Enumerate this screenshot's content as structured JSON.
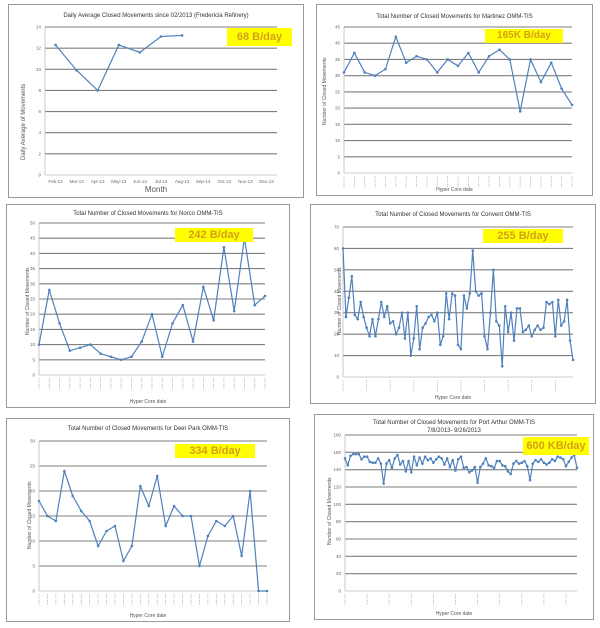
{
  "colors": {
    "line": "#4f81bd",
    "grid": "#7f7f7f",
    "badge_bg": "#ffff00",
    "badge_text": "#d4a017",
    "border": "#9a9a9a"
  },
  "chart_data": [
    {
      "id": "fredericia",
      "type": "line",
      "title": "Daily Average Closed Movements since 02/2013 (Fredericia Refinery)",
      "badge": "68 B/day",
      "xlabel": "Month",
      "ylabel": "Daily Average of Movements",
      "categories": [
        "Feb-13",
        "Mar-13",
        "Apr-13",
        "May-13",
        "Jun-13",
        "Jul-13",
        "Aug-13",
        "Sep-13",
        "Oct-13",
        "Nov-13",
        "Dec-13"
      ],
      "values": [
        12.3,
        9.9,
        8.0,
        12.3,
        11.6,
        13.1,
        13.2,
        null,
        null,
        null,
        null
      ],
      "ylim": [
        0,
        14
      ],
      "yticks": [
        0,
        2,
        4,
        6,
        8,
        10,
        12,
        14
      ],
      "grid": true
    },
    {
      "id": "martinez",
      "type": "line",
      "title": "Total Number of Closed Movements for Martinez OMM-TIS",
      "badge": "165K B/day",
      "xlabel": "Hyper Core date",
      "ylabel": "Number of Closed Movements",
      "values": [
        31,
        37,
        31,
        30,
        32,
        42,
        34,
        36,
        35,
        31,
        35,
        33,
        37,
        31,
        36,
        38,
        35,
        19,
        35,
        28,
        34,
        26,
        21
      ],
      "ylim": [
        0,
        45
      ],
      "yticks": [
        0,
        5,
        10,
        15,
        20,
        25,
        30,
        35,
        40,
        45
      ],
      "grid": true
    },
    {
      "id": "norco",
      "type": "line",
      "title": "Total Number of Closed Movements for Norco OMM-TIS",
      "badge": "242 B/day",
      "xlabel": "Hyper Core date",
      "ylabel": "Number of Closed Movements",
      "values": [
        10,
        28,
        17,
        8,
        9,
        10,
        7,
        6,
        5,
        6,
        11,
        20,
        6,
        17,
        23,
        11,
        29,
        18,
        42,
        21,
        45,
        23,
        26
      ],
      "ylim": [
        0,
        50
      ],
      "yticks": [
        0,
        5,
        10,
        15,
        20,
        25,
        30,
        35,
        40,
        45,
        50
      ],
      "grid": true
    },
    {
      "id": "convent",
      "type": "line",
      "title": "Total Number of Closed Movements for Convent OMM-TIS",
      "badge": "255 B/day",
      "xlabel": "Hyper Core date",
      "ylabel": "Number of Closed Movements",
      "values": [
        60,
        28,
        37,
        47,
        29,
        27,
        35,
        28,
        23,
        19,
        27,
        19,
        27,
        35,
        28,
        33,
        25,
        26,
        20,
        23,
        30,
        18,
        30,
        10,
        18,
        33,
        13,
        23,
        25,
        28,
        29,
        26,
        30,
        15,
        19,
        39,
        27,
        39,
        38,
        15,
        13,
        38,
        32,
        39,
        59,
        40,
        38,
        39,
        19,
        13,
        30,
        50,
        26,
        24,
        5,
        33,
        21,
        30,
        17,
        32,
        32,
        21,
        22,
        24,
        19,
        22,
        24,
        22,
        23,
        35,
        34,
        35,
        19,
        36,
        24,
        26,
        36,
        17,
        8
      ],
      "ylim": [
        0,
        70
      ],
      "yticks": [
        0,
        10,
        20,
        30,
        40,
        50,
        60,
        70
      ],
      "grid": true
    },
    {
      "id": "deer_park",
      "type": "line",
      "title": "Total Number of Closed Movements for Deer Park OMM-TIS",
      "badge": "334 B/day",
      "xlabel": "Hyper Core date",
      "ylabel": "Number of Closed Movements",
      "values": [
        18,
        15,
        14,
        24,
        19,
        16,
        14,
        9,
        12,
        13,
        6,
        9,
        21,
        17,
        23,
        13,
        17,
        15,
        15,
        5,
        11,
        14,
        13,
        15,
        7,
        20,
        0,
        0
      ],
      "ylim": [
        0,
        30
      ],
      "yticks": [
        0,
        5,
        10,
        15,
        20,
        25,
        30
      ],
      "grid": true
    },
    {
      "id": "port_arthur",
      "type": "line",
      "title": "Total Number of Closed Movements for Port Arthur OMM-TIS",
      "subtitle": "7/8/2013- 9/26/2013",
      "badge": "600 KB/day",
      "xlabel": "Hyper Core date",
      "ylabel": "Number of Closed Movements",
      "values": [
        153,
        145,
        156,
        158,
        158,
        158,
        152,
        155,
        155,
        149,
        148,
        148,
        153,
        147,
        124,
        147,
        151,
        142,
        153,
        157,
        146,
        150,
        138,
        150,
        137,
        155,
        145,
        154,
        147,
        155,
        151,
        153,
        148,
        152,
        155,
        153,
        146,
        153,
        143,
        151,
        139,
        152,
        155,
        142,
        143,
        137,
        139,
        143,
        125,
        143,
        147,
        153,
        145,
        144,
        142,
        150,
        150,
        145,
        144,
        138,
        135,
        147,
        150,
        147,
        148,
        150,
        144,
        128,
        147,
        151,
        149,
        152,
        148,
        146,
        148,
        152,
        150,
        155,
        154,
        152,
        144,
        149,
        154,
        157,
        142
      ],
      "ylim": [
        0,
        180
      ],
      "yticks": [
        0,
        20,
        40,
        60,
        80,
        100,
        120,
        140,
        160,
        180
      ],
      "grid": true
    }
  ]
}
